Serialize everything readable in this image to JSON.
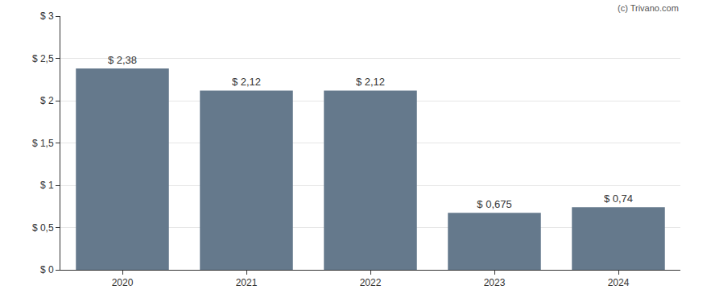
{
  "chart_data": {
    "type": "bar",
    "categories": [
      "2020",
      "2021",
      "2022",
      "2023",
      "2024"
    ],
    "values": [
      2.38,
      2.12,
      2.12,
      0.675,
      0.74
    ],
    "value_labels": [
      "$ 2,38",
      "$ 2,12",
      "$ 2,12",
      "$ 0,675",
      "$ 0,74"
    ],
    "data_labels": true,
    "color": "#65798c",
    "ylim": [
      0,
      3
    ],
    "yticks": [
      {
        "value": 0,
        "label": "$ 0"
      },
      {
        "value": 0.5,
        "label": "$ 0,5"
      },
      {
        "value": 1,
        "label": "$ 1"
      },
      {
        "value": 1.5,
        "label": "$ 1,5"
      },
      {
        "value": 2,
        "label": "$ 2"
      },
      {
        "value": 2.5,
        "label": "$ 2,5"
      },
      {
        "value": 3,
        "label": "$ 3"
      }
    ],
    "grid": true,
    "annotations": [
      "(c) Trivano.com"
    ]
  }
}
